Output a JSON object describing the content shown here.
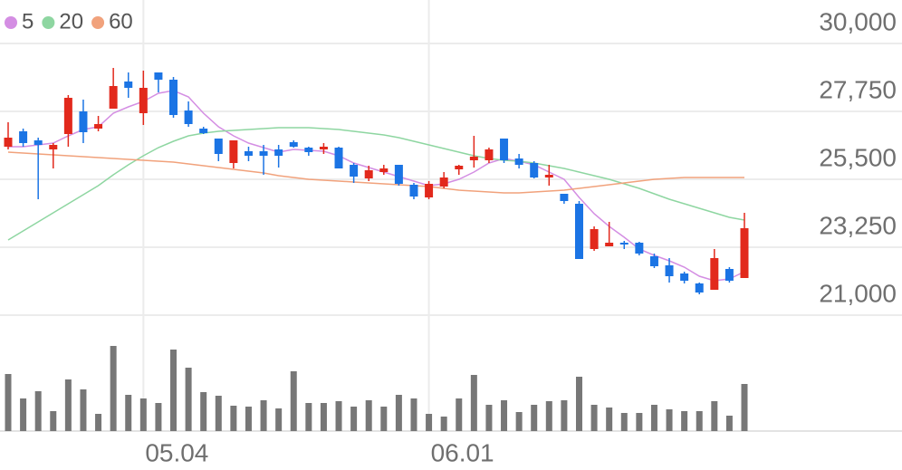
{
  "chart_data": {
    "type": "candlestick",
    "categories": [
      null,
      null,
      null,
      null,
      null,
      null,
      null,
      null,
      null,
      "05.04",
      null,
      null,
      null,
      null,
      null,
      null,
      null,
      null,
      null,
      null,
      null,
      null,
      null,
      null,
      null,
      null,
      null,
      null,
      "06.01",
      null,
      null,
      null,
      null,
      null,
      null,
      null,
      null,
      null,
      null,
      null,
      null,
      null,
      null,
      null,
      null,
      null,
      null,
      null,
      null,
      null
    ],
    "open": [
      26580,
      27090,
      26790,
      26490,
      27000,
      27750,
      27180,
      27840,
      28740,
      27690,
      29040,
      28800,
      27780,
      27180,
      26850,
      26040,
      26430,
      26430,
      26490,
      26730,
      26550,
      26490,
      26550,
      25980,
      25530,
      25740,
      25980,
      25320,
      24900,
      25260,
      25830,
      26130,
      26130,
      26850,
      26190,
      26040,
      25560,
      25020,
      24690,
      23190,
      23280,
      23400,
      23400,
      22950,
      22650,
      22380,
      22050,
      21840,
      22530,
      22230
    ],
    "high": [
      27390,
      27180,
      26880,
      26700,
      28290,
      28140,
      27600,
      29190,
      29040,
      29100,
      29040,
      28890,
      28080,
      27240,
      26850,
      26790,
      26580,
      26640,
      26640,
      26790,
      26580,
      26700,
      26580,
      26040,
      25950,
      25980,
      25980,
      25380,
      25440,
      25740,
      25980,
      26940,
      26550,
      26850,
      26340,
      26100,
      25980,
      25020,
      24780,
      23940,
      24090,
      23460,
      23430,
      23040,
      22890,
      22440,
      22080,
      23190,
      22590,
      24390
    ],
    "low": [
      26490,
      26580,
      24840,
      25860,
      26580,
      26700,
      27090,
      27840,
      28200,
      27300,
      28380,
      27540,
      27240,
      27000,
      26100,
      25860,
      26100,
      25650,
      25890,
      26550,
      26280,
      26340,
      25860,
      25380,
      25440,
      25650,
      25290,
      24840,
      24840,
      25200,
      25650,
      25890,
      26040,
      26040,
      25860,
      25530,
      25290,
      24690,
      22860,
      23130,
      23280,
      23190,
      22980,
      22560,
      22080,
      22050,
      21690,
      21840,
      22080,
      22230
    ],
    "close": [
      26880,
      26700,
      26640,
      26640,
      28200,
      27060,
      27330,
      28590,
      28530,
      28530,
      28800,
      27630,
      27330,
      27030,
      26340,
      26790,
      26280,
      26280,
      26280,
      26580,
      26400,
      26580,
      25860,
      25590,
      25800,
      25860,
      25350,
      24930,
      25350,
      25560,
      25950,
      26250,
      26490,
      26130,
      25980,
      25560,
      25650,
      24780,
      22860,
      23850,
      23400,
      23340,
      23040,
      22620,
      22290,
      22140,
      21750,
      22890,
      22140,
      23880
    ],
    "up_color": "#e2291c",
    "down_color": "#1b74e4",
    "series": [
      {
        "name": "5",
        "color": "#d48ee3",
        "values": [
          26580,
          26580,
          26640,
          26700,
          26940,
          27150,
          27240,
          27690,
          27900,
          28080,
          28350,
          28440,
          28230,
          27690,
          27240,
          26940,
          26700,
          26550,
          26400,
          26490,
          26460,
          26430,
          26280,
          26040,
          25890,
          25740,
          25590,
          25440,
          25290,
          25350,
          25500,
          25740,
          26040,
          26190,
          26100,
          25980,
          25740,
          25500,
          24900,
          24360,
          23940,
          23580,
          23190,
          22980,
          22800,
          22590,
          22290,
          22140,
          22200,
          22440
        ]
      },
      {
        "name": "20",
        "color": "#8ed6a1",
        "values": [
          23490,
          23790,
          24090,
          24390,
          24690,
          24990,
          25290,
          25650,
          25980,
          26280,
          26550,
          26760,
          26940,
          27030,
          27090,
          27120,
          27150,
          27180,
          27210,
          27210,
          27210,
          27180,
          27150,
          27090,
          27030,
          26970,
          26880,
          26760,
          26640,
          26520,
          26400,
          26280,
          26190,
          26130,
          26100,
          26040,
          25950,
          25860,
          25740,
          25620,
          25500,
          25350,
          25200,
          25020,
          24840,
          24690,
          24540,
          24390,
          24240,
          24150
        ]
      },
      {
        "name": "60",
        "color": "#f1a27c",
        "values": [
          26400,
          26370,
          26340,
          26310,
          26280,
          26250,
          26220,
          26190,
          26160,
          26130,
          26100,
          26070,
          26010,
          25950,
          25890,
          25830,
          25770,
          25710,
          25620,
          25560,
          25500,
          25470,
          25440,
          25410,
          25380,
          25350,
          25320,
          25290,
          25260,
          25200,
          25140,
          25110,
          25080,
          25050,
          25050,
          25080,
          25110,
          25140,
          25200,
          25260,
          25320,
          25380,
          25440,
          25500,
          25530,
          25560,
          25560,
          25560,
          25560,
          25560
        ]
      }
    ],
    "volume": [
      63,
      36,
      44,
      22,
      57,
      46,
      19,
      94,
      40,
      36,
      31,
      90,
      70,
      43,
      39,
      28,
      27,
      34,
      25,
      66,
      31,
      31,
      33,
      27,
      34,
      27,
      40,
      36,
      19,
      16,
      36,
      62,
      29,
      34,
      21,
      29,
      33,
      34,
      60,
      29,
      26,
      20,
      20,
      29,
      24,
      22,
      22,
      33,
      17,
      52
    ],
    "volume_color": "#777777",
    "volume_ylim": [
      0,
      126
    ],
    "ylim": [
      21000,
      30000
    ],
    "yticks": [
      {
        "value": 21000,
        "label": "21,000"
      },
      {
        "value": 23250,
        "label": "23,250"
      },
      {
        "value": 25500,
        "label": "25,500"
      },
      {
        "value": 27750,
        "label": "27,750"
      },
      {
        "value": 30000,
        "label": "30,000"
      }
    ],
    "grid": true
  }
}
